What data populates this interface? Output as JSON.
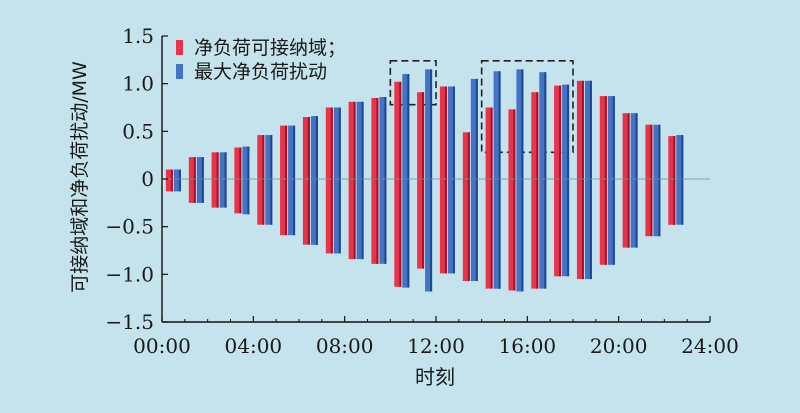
{
  "chart_data": {
    "type": "bar",
    "xlabel": "时刻",
    "ylabel": "可接纳域和净负荷扰动/MW",
    "ylim": [
      -1.5,
      1.5
    ],
    "yticks": [
      "1.5",
      "1.0",
      "0.5",
      "0",
      "−0.5",
      "−1.0",
      "−1.5"
    ],
    "ytick_values": [
      1.5,
      1.0,
      0.5,
      0,
      -0.5,
      -1.0,
      -1.5
    ],
    "xticks": [
      "00:00",
      "04:00",
      "08:00",
      "12:00",
      "16:00",
      "20:00",
      "24:00"
    ],
    "xtick_hours": [
      0,
      4,
      8,
      12,
      16,
      20,
      24
    ],
    "x_hours": [
      0.5,
      1.5,
      2.5,
      3.5,
      4.5,
      5.5,
      6.5,
      7.5,
      8.5,
      9.5,
      10.5,
      11.5,
      12.5,
      13.5,
      14.5,
      15.5,
      16.5,
      17.5,
      18.5,
      19.5,
      20.5,
      21.5,
      22.5,
      23.5
    ],
    "grid": false,
    "legend_position": "top-left",
    "colors": {
      "red": "#e8344a",
      "red_dark": "#a80f22",
      "blue": "#4472c4",
      "blue_dark": "#1d4791"
    },
    "series": [
      {
        "name": "净负荷可接纳域；",
        "color": "red",
        "upper": [
          0.1,
          0.23,
          0.28,
          0.33,
          0.46,
          0.56,
          0.65,
          0.75,
          0.81,
          0.85,
          1.02,
          0.91,
          0.97,
          0.49,
          0.75,
          0.73,
          0.91,
          0.98,
          1.03,
          0.87,
          0.69,
          0.57,
          0.45,
          0.0
        ],
        "lower": [
          -0.13,
          -0.25,
          -0.3,
          -0.36,
          -0.48,
          -0.59,
          -0.69,
          -0.78,
          -0.84,
          -0.89,
          -1.13,
          -0.94,
          -0.99,
          -1.07,
          -1.15,
          -1.17,
          -1.15,
          -1.02,
          -1.05,
          -0.9,
          -0.72,
          -0.6,
          -0.48,
          0.0
        ]
      },
      {
        "name": "最大净负荷扰动",
        "color": "blue",
        "upper": [
          0.1,
          0.23,
          0.28,
          0.34,
          0.46,
          0.56,
          0.66,
          0.75,
          0.81,
          0.86,
          1.1,
          1.15,
          0.97,
          1.05,
          1.13,
          1.15,
          1.12,
          0.99,
          1.03,
          0.87,
          0.69,
          0.57,
          0.46,
          0.0
        ],
        "lower": [
          -0.13,
          -0.25,
          -0.3,
          -0.37,
          -0.48,
          -0.59,
          -0.69,
          -0.78,
          -0.84,
          -0.89,
          -1.14,
          -1.18,
          -0.99,
          -1.07,
          -1.15,
          -1.18,
          -1.15,
          -1.02,
          -1.05,
          -0.9,
          -0.72,
          -0.6,
          -0.48,
          0.0
        ]
      }
    ],
    "highlight_boxes": [
      {
        "x_from": 10.0,
        "x_to": 12.0,
        "y_from": 0.78,
        "y_to": 1.24
      },
      {
        "x_from": 14.0,
        "x_to": 18.0,
        "y_from": 0.28,
        "y_to": 1.24
      }
    ]
  }
}
